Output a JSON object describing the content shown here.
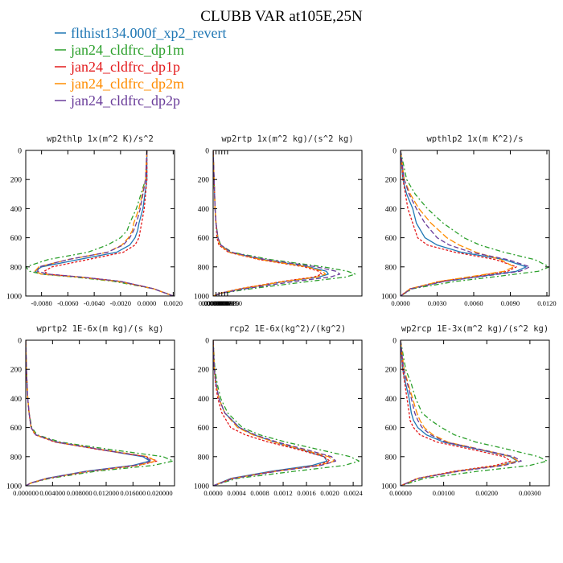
{
  "title": "CLUBB VAR at105E,25N",
  "legend": [
    {
      "label": "flthist134.000f_xp2_revert",
      "color": "#1f77b4"
    },
    {
      "label": "jan24_cldfrc_dp1m",
      "color": "#2ca02c"
    },
    {
      "label": "jan24_cldfrc_dp1p",
      "color": "#e31a1c"
    },
    {
      "label": "jan24_cldfrc_dp2m",
      "color": "#ff8c00"
    },
    {
      "label": "jan24_cldfrc_dp2p",
      "color": "#6a3d9a"
    }
  ],
  "chart_data": [
    {
      "type": "line",
      "title": "wp2thlp  1x(m^2 K)/s^2",
      "ylim": [
        1000,
        0
      ],
      "yticks": [
        "0",
        "200",
        "400",
        "600",
        "800",
        "1000"
      ],
      "xlim": [
        -0.0092,
        0.0021
      ],
      "xticks": [
        "-0.0080",
        "-0.0060",
        "-0.0040",
        "-0.0020",
        "0.0000",
        "0.0020"
      ],
      "y": [
        0,
        200,
        400,
        500,
        550,
        600,
        650,
        700,
        750,
        800,
        830,
        850,
        870,
        900,
        950,
        1000
      ],
      "series": [
        {
          "name": "flthist134.000f_xp2_revert",
          "values": [
            0.0,
            0.0,
            -0.0003,
            -0.0006,
            -0.0007,
            -0.0009,
            -0.0013,
            -0.0023,
            -0.0052,
            -0.008,
            -0.0085,
            -0.008,
            -0.005,
            -0.002,
            0.0005,
            0.002
          ]
        },
        {
          "name": "jan24_cldfrc_dp1m",
          "values": [
            0.0,
            -0.0001,
            -0.0008,
            -0.0013,
            -0.0015,
            -0.002,
            -0.003,
            -0.0045,
            -0.0075,
            -0.0092,
            -0.0089,
            -0.008,
            -0.0055,
            -0.0025,
            0.0005,
            0.002
          ]
        },
        {
          "name": "jan24_cldfrc_dp1p",
          "values": [
            0.0,
            0.0,
            -0.0002,
            -0.0004,
            -0.0005,
            -0.0006,
            -0.0009,
            -0.0018,
            -0.0045,
            -0.0072,
            -0.0078,
            -0.0075,
            -0.005,
            -0.002,
            0.0005,
            0.002
          ]
        },
        {
          "name": "jan24_cldfrc_dp2m",
          "values": [
            0.0,
            -0.0001,
            -0.0006,
            -0.001,
            -0.0011,
            -0.0014,
            -0.0019,
            -0.003,
            -0.006,
            -0.0082,
            -0.0085,
            -0.008,
            -0.0052,
            -0.0022,
            0.0005,
            0.002
          ]
        },
        {
          "name": "jan24_cldfrc_dp2p",
          "values": [
            0.0,
            -0.0001,
            -0.0005,
            -0.0008,
            -0.001,
            -0.0013,
            -0.0018,
            -0.003,
            -0.006,
            -0.0082,
            -0.0083,
            -0.0075,
            -0.005,
            -0.002,
            0.0005,
            0.002
          ]
        }
      ]
    },
    {
      "type": "line",
      "title": "wp2rtp  1x(m^2 kg)/(s^2 kg)",
      "ylim": [
        1000,
        0
      ],
      "yticks": [
        "0",
        "200",
        "400",
        "600",
        "800",
        "1000"
      ],
      "xlim": [
        0,
        0.000155
      ],
      "xticks": [
        "0.0000000",
        "0.0000030",
        "0.0000060",
        "0.0000090",
        "0.0000120",
        "0.0000150"
      ],
      "y": [
        0,
        200,
        400,
        500,
        600,
        650,
        700,
        750,
        800,
        830,
        850,
        870,
        900,
        950,
        980,
        1000
      ],
      "series": [
        {
          "name": "flthist134.000f_xp2_revert",
          "values": [
            0,
            1e-06,
            2e-06,
            3e-06,
            5e-06,
            8e-06,
            1.8e-05,
            5.2e-05,
            0.0001,
            0.000118,
            0.00012,
            0.00011,
            7.5e-05,
            3e-05,
            8e-06,
            0
          ]
        },
        {
          "name": "jan24_cldfrc_dp1m",
          "values": [
            0,
            1e-06,
            2e-06,
            3e-06,
            5e-06,
            8e-06,
            2e-05,
            6e-05,
            0.000115,
            0.00014,
            0.000148,
            0.000138,
            0.0001,
            4e-05,
            1e-05,
            0
          ]
        },
        {
          "name": "jan24_cldfrc_dp1p",
          "values": [
            0,
            1e-06,
            2e-06,
            3e-06,
            4e-06,
            6e-06,
            1.6e-05,
            4.8e-05,
            9.5e-05,
            0.00011,
            0.000113,
            0.000105,
            7.2e-05,
            2.8e-05,
            8e-06,
            0
          ]
        },
        {
          "name": "jan24_cldfrc_dp2m",
          "values": [
            0,
            1e-06,
            2e-06,
            3e-06,
            5e-06,
            7e-06,
            1.7e-05,
            5e-05,
            9.8e-05,
            0.000114,
            0.000117,
            0.000108,
            7.4e-05,
            2.9e-05,
            8e-06,
            0
          ]
        },
        {
          "name": "jan24_cldfrc_dp2p",
          "values": [
            0,
            1e-06,
            2e-06,
            3e-06,
            5e-06,
            8e-06,
            1.9e-05,
            5.5e-05,
            0.000108,
            0.000128,
            0.000132,
            0.000122,
            8.5e-05,
            3.4e-05,
            9e-06,
            0
          ]
        }
      ]
    },
    {
      "type": "line",
      "title": "wpthlp2  1x(m K^2)/s",
      "ylim": [
        1000,
        0
      ],
      "yticks": [
        "0",
        "200",
        "400",
        "600",
        "800",
        "1000"
      ],
      "xlim": [
        0,
        0.0122
      ],
      "xticks": [
        "0.0000",
        "0.0030",
        "0.0060",
        "0.0090",
        "0.0120"
      ],
      "y": [
        0,
        200,
        300,
        400,
        500,
        600,
        650,
        700,
        750,
        800,
        830,
        860,
        900,
        950,
        1000
      ],
      "series": [
        {
          "name": "flthist134.000f_xp2_revert",
          "values": [
            0,
            0.0002,
            0.0005,
            0.001,
            0.0013,
            0.002,
            0.003,
            0.005,
            0.0085,
            0.0103,
            0.0095,
            0.007,
            0.0035,
            0.0008,
            0
          ]
        },
        {
          "name": "jan24_cldfrc_dp1m",
          "values": [
            0,
            0.0005,
            0.0012,
            0.0022,
            0.0035,
            0.0052,
            0.0065,
            0.0085,
            0.011,
            0.0122,
            0.0113,
            0.0085,
            0.0045,
            0.001,
            0
          ]
        },
        {
          "name": "jan24_cldfrc_dp1p",
          "values": [
            0,
            0.0002,
            0.0004,
            0.0006,
            0.001,
            0.0014,
            0.0022,
            0.0045,
            0.0078,
            0.0095,
            0.0088,
            0.0065,
            0.0032,
            0.0008,
            0
          ]
        },
        {
          "name": "jan24_cldfrc_dp2m",
          "values": [
            0,
            0.0003,
            0.0008,
            0.0015,
            0.0025,
            0.0038,
            0.0048,
            0.0062,
            0.0082,
            0.0093,
            0.0085,
            0.0063,
            0.0032,
            0.0008,
            0
          ]
        },
        {
          "name": "jan24_cldfrc_dp2p",
          "values": [
            0,
            0.0003,
            0.0007,
            0.0013,
            0.002,
            0.003,
            0.004,
            0.0058,
            0.0088,
            0.0106,
            0.0098,
            0.0072,
            0.0036,
            0.0009,
            0
          ]
        }
      ]
    },
    {
      "type": "line",
      "title": "wprtp2  1E-6x(m kg)/(s kg)",
      "ylim": [
        1000,
        0
      ],
      "yticks": [
        "0",
        "200",
        "400",
        "600",
        "800",
        "1000"
      ],
      "xlim": [
        0,
        0.0222
      ],
      "xticks": [
        "0.000000",
        "0.004000",
        "0.008000",
        "0.012000",
        "0.016000",
        "0.020000"
      ],
      "y": [
        0,
        200,
        400,
        500,
        600,
        650,
        700,
        750,
        800,
        830,
        860,
        900,
        950,
        980,
        1000
      ],
      "series": [
        {
          "name": "flthist134.000f_xp2_revert",
          "values": [
            0,
            0.0001,
            0.0003,
            0.0005,
            0.0008,
            0.0015,
            0.0045,
            0.011,
            0.0175,
            0.0185,
            0.016,
            0.009,
            0.003,
            0.0008,
            0
          ]
        },
        {
          "name": "jan24_cldfrc_dp1m",
          "values": [
            0,
            0.0001,
            0.0003,
            0.0005,
            0.0009,
            0.0017,
            0.0052,
            0.0125,
            0.0205,
            0.022,
            0.019,
            0.0105,
            0.0035,
            0.0009,
            0
          ]
        },
        {
          "name": "jan24_cldfrc_dp1p",
          "values": [
            0,
            0.0001,
            0.0003,
            0.0005,
            0.0008,
            0.0014,
            0.0044,
            0.0108,
            0.018,
            0.0196,
            0.0168,
            0.0095,
            0.0032,
            0.0008,
            0
          ]
        },
        {
          "name": "jan24_cldfrc_dp2m",
          "values": [
            0,
            0.0001,
            0.0003,
            0.0005,
            0.0008,
            0.0015,
            0.0046,
            0.0112,
            0.0182,
            0.0194,
            0.0166,
            0.0093,
            0.0031,
            0.0008,
            0
          ]
        },
        {
          "name": "jan24_cldfrc_dp2p",
          "values": [
            0,
            0.0001,
            0.0003,
            0.0005,
            0.0008,
            0.0015,
            0.0047,
            0.0112,
            0.0178,
            0.0188,
            0.0162,
            0.0092,
            0.0031,
            0.0008,
            0
          ]
        }
      ]
    },
    {
      "type": "line",
      "title": "rcp2  1E-6x(kg^2)/(kg^2)",
      "ylim": [
        1000,
        0
      ],
      "yticks": [
        "0",
        "200",
        "400",
        "600",
        "800",
        "1000"
      ],
      "xlim": [
        0,
        0.00255
      ],
      "xticks": [
        "0.0000",
        "0.0004",
        "0.0008",
        "0.0012",
        "0.0016",
        "0.0020",
        "0.0024"
      ],
      "y": [
        0,
        200,
        300,
        400,
        500,
        600,
        650,
        700,
        750,
        800,
        830,
        860,
        900,
        950,
        1000
      ],
      "series": [
        {
          "name": "flthist134.000f_xp2_revert",
          "values": [
            0,
            2e-05,
            5e-05,
            0.0001,
            0.0002,
            0.00045,
            0.0007,
            0.00105,
            0.0015,
            0.0019,
            0.00195,
            0.0017,
            0.001,
            0.0003,
            0
          ]
        },
        {
          "name": "jan24_cldfrc_dp1m",
          "values": [
            0,
            3e-05,
            7e-05,
            0.00013,
            0.00025,
            0.0005,
            0.0008,
            0.00125,
            0.0018,
            0.00235,
            0.0025,
            0.00225,
            0.0014,
            0.0004,
            0
          ]
        },
        {
          "name": "jan24_cldfrc_dp1p",
          "values": [
            0,
            2e-05,
            4e-05,
            8e-05,
            0.00015,
            0.0003,
            0.00055,
            0.00095,
            0.00145,
            0.0019,
            0.002,
            0.00178,
            0.00105,
            0.00032,
            0
          ]
        },
        {
          "name": "jan24_cldfrc_dp2m",
          "values": [
            0,
            2e-05,
            5e-05,
            0.0001,
            0.0002,
            0.00042,
            0.00068,
            0.00105,
            0.00152,
            0.00198,
            0.00208,
            0.00182,
            0.00108,
            0.00033,
            0
          ]
        },
        {
          "name": "jan24_cldfrc_dp2p",
          "values": [
            0,
            2e-05,
            5e-05,
            0.0001,
            0.0002,
            0.00045,
            0.00072,
            0.0011,
            0.00158,
            0.00203,
            0.0021,
            0.00185,
            0.0011,
            0.00034,
            0
          ]
        }
      ]
    },
    {
      "type": "line",
      "title": "wp2rcp  1E-3x(m^2 kg)/(s^2 kg)",
      "ylim": [
        1000,
        0
      ],
      "yticks": [
        "0",
        "200",
        "400",
        "600",
        "800",
        "1000"
      ],
      "xlim": [
        0,
        0.00345
      ],
      "xticks": [
        "0.00000",
        "0.00100",
        "0.00200",
        "0.00300"
      ],
      "y": [
        0,
        200,
        300,
        400,
        500,
        550,
        600,
        650,
        700,
        750,
        800,
        830,
        860,
        900,
        950,
        1000
      ],
      "series": [
        {
          "name": "flthist134.000f_xp2_revert",
          "values": [
            0,
            5e-05,
            0.00012,
            0.0002,
            0.00025,
            0.0003,
            0.0004,
            0.0006,
            0.001,
            0.0018,
            0.00255,
            0.0027,
            0.0023,
            0.0013,
            0.0004,
            0
          ]
        },
        {
          "name": "jan24_cldfrc_dp1m",
          "values": [
            0,
            0.00012,
            0.00025,
            0.00035,
            0.0005,
            0.0007,
            0.00095,
            0.00125,
            0.00175,
            0.0025,
            0.0032,
            0.0034,
            0.003,
            0.0018,
            0.00055,
            0
          ]
        },
        {
          "name": "jan24_cldfrc_dp1p",
          "values": [
            0,
            5e-05,
            0.0001,
            0.00015,
            0.0002,
            0.00022,
            0.0003,
            0.00045,
            0.00085,
            0.00165,
            0.0024,
            0.00255,
            0.0022,
            0.00125,
            0.00038,
            0
          ]
        },
        {
          "name": "jan24_cldfrc_dp2m",
          "values": [
            0,
            8e-05,
            0.00018,
            0.00028,
            0.00038,
            0.00045,
            0.00055,
            0.00075,
            0.0011,
            0.00185,
            0.00258,
            0.00272,
            0.00232,
            0.00132,
            0.0004,
            0
          ]
        },
        {
          "name": "jan24_cldfrc_dp2p",
          "values": [
            0,
            7e-05,
            0.00016,
            0.00025,
            0.00033,
            0.0004,
            0.0005,
            0.0007,
            0.00105,
            0.00185,
            0.00262,
            0.0028,
            0.0024,
            0.00136,
            0.00041,
            0
          ]
        }
      ]
    }
  ]
}
